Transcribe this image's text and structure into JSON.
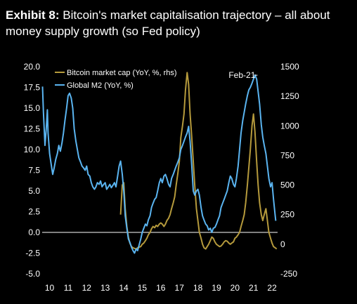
{
  "title": {
    "exhibit": "Exhibit 8:",
    "text": " Bitcoin's market capitalisation trajectory – all about money supply growth (so Fed policy)"
  },
  "colors": {
    "background": "#000000",
    "m2": "#5ab4f0",
    "btc": "#b59a3c",
    "zero_line": "#ffffff",
    "text": "#ffffff"
  },
  "chart_data": {
    "type": "line",
    "legend_position": "top-left",
    "grid": false,
    "y_left": {
      "ylim": [
        -5.0,
        20.0
      ],
      "ticks": [
        "20.0",
        "17.5",
        "15.0",
        "12.5",
        "10.0",
        "7.5",
        "5.0",
        "2.5",
        "0.0",
        "-2.5",
        "-5.0"
      ]
    },
    "y_right": {
      "ylim": [
        -250,
        1500
      ],
      "ticks": [
        "1500",
        "1250",
        "1000",
        "750",
        "500",
        "250",
        "0",
        "-250"
      ]
    },
    "x_ticks": [
      "10",
      "11",
      "12",
      "13",
      "14",
      "15",
      "16",
      "17",
      "18",
      "19",
      "20",
      "21",
      "22"
    ],
    "x_range": [
      9.6,
      22.3
    ],
    "annotations": [
      {
        "text": "Feb-21",
        "x": 21.1,
        "y_right": 1440
      }
    ],
    "series": [
      {
        "name": "Global M2 (YoY, %)",
        "axis": "left",
        "points": [
          [
            9.62,
            17.6
          ],
          [
            9.67,
            14.5
          ],
          [
            9.75,
            10.5
          ],
          [
            9.82,
            12.5
          ],
          [
            9.88,
            14.8
          ],
          [
            9.92,
            12.0
          ],
          [
            10.0,
            9.5
          ],
          [
            10.08,
            8.3
          ],
          [
            10.17,
            7.0
          ],
          [
            10.25,
            7.8
          ],
          [
            10.33,
            8.8
          ],
          [
            10.42,
            9.5
          ],
          [
            10.5,
            10.5
          ],
          [
            10.58,
            9.8
          ],
          [
            10.67,
            10.8
          ],
          [
            10.75,
            12.0
          ],
          [
            10.83,
            13.5
          ],
          [
            10.92,
            15.0
          ],
          [
            11.0,
            16.5
          ],
          [
            11.08,
            16.8
          ],
          [
            11.17,
            16.2
          ],
          [
            11.25,
            15.0
          ],
          [
            11.33,
            12.5
          ],
          [
            11.42,
            11.0
          ],
          [
            11.5,
            10.0
          ],
          [
            11.58,
            9.0
          ],
          [
            11.67,
            8.5
          ],
          [
            11.75,
            8.0
          ],
          [
            11.83,
            7.8
          ],
          [
            11.92,
            7.5
          ],
          [
            12.0,
            8.0
          ],
          [
            12.08,
            7.0
          ],
          [
            12.17,
            6.8
          ],
          [
            12.25,
            6.0
          ],
          [
            12.33,
            5.5
          ],
          [
            12.42,
            5.2
          ],
          [
            12.5,
            5.5
          ],
          [
            12.58,
            6.0
          ],
          [
            12.67,
            5.8
          ],
          [
            12.75,
            6.2
          ],
          [
            12.83,
            5.5
          ],
          [
            12.92,
            5.8
          ],
          [
            13.0,
            6.0
          ],
          [
            13.08,
            5.2
          ],
          [
            13.17,
            5.5
          ],
          [
            13.25,
            5.8
          ],
          [
            13.33,
            5.4
          ],
          [
            13.42,
            5.7
          ],
          [
            13.5,
            6.0
          ],
          [
            13.58,
            5.5
          ],
          [
            13.67,
            6.8
          ],
          [
            13.75,
            8.0
          ],
          [
            13.83,
            8.6
          ],
          [
            13.92,
            7.0
          ],
          [
            14.0,
            5.0
          ],
          [
            14.08,
            2.0
          ],
          [
            14.17,
            0.5
          ],
          [
            14.25,
            -0.8
          ],
          [
            14.33,
            -1.2
          ],
          [
            14.42,
            -1.8
          ],
          [
            14.5,
            -2.2
          ],
          [
            14.58,
            -2.5
          ],
          [
            14.67,
            -2.0
          ],
          [
            14.75,
            -2.2
          ],
          [
            14.83,
            -1.5
          ],
          [
            14.92,
            -0.8
          ],
          [
            15.0,
            0.0
          ],
          [
            15.08,
            0.5
          ],
          [
            15.17,
            1.0
          ],
          [
            15.25,
            0.8
          ],
          [
            15.33,
            1.5
          ],
          [
            15.42,
            2.0
          ],
          [
            15.5,
            3.0
          ],
          [
            15.58,
            3.5
          ],
          [
            15.67,
            4.0
          ],
          [
            15.75,
            4.2
          ],
          [
            15.83,
            5.0
          ],
          [
            15.92,
            6.0
          ],
          [
            16.0,
            6.5
          ],
          [
            16.08,
            6.0
          ],
          [
            16.17,
            6.8
          ],
          [
            16.25,
            7.0
          ],
          [
            16.33,
            6.5
          ],
          [
            16.42,
            5.8
          ],
          [
            16.5,
            5.5
          ],
          [
            16.58,
            6.5
          ],
          [
            16.67,
            7.0
          ],
          [
            16.75,
            7.5
          ],
          [
            16.83,
            8.0
          ],
          [
            16.92,
            8.5
          ],
          [
            17.0,
            9.0
          ],
          [
            17.08,
            10.0
          ],
          [
            17.17,
            10.5
          ],
          [
            17.25,
            11.0
          ],
          [
            17.33,
            11.5
          ],
          [
            17.42,
            12.0
          ],
          [
            17.5,
            12.8
          ],
          [
            17.58,
            11.0
          ],
          [
            17.67,
            8.0
          ],
          [
            17.75,
            5.0
          ],
          [
            17.83,
            4.5
          ],
          [
            17.92,
            5.0
          ],
          [
            18.0,
            5.2
          ],
          [
            18.08,
            4.5
          ],
          [
            18.17,
            3.0
          ],
          [
            18.25,
            2.0
          ],
          [
            18.33,
            1.5
          ],
          [
            18.42,
            1.0
          ],
          [
            18.5,
            0.8
          ],
          [
            18.58,
            0.3
          ],
          [
            18.67,
            0.5
          ],
          [
            18.75,
            0.0
          ],
          [
            18.83,
            0.5
          ],
          [
            18.92,
            0.6
          ],
          [
            19.0,
            1.0
          ],
          [
            19.08,
            1.5
          ],
          [
            19.17,
            2.0
          ],
          [
            19.25,
            3.0
          ],
          [
            19.33,
            3.5
          ],
          [
            19.42,
            4.0
          ],
          [
            19.5,
            4.5
          ],
          [
            19.58,
            5.0
          ],
          [
            19.67,
            6.0
          ],
          [
            19.75,
            6.8
          ],
          [
            19.83,
            6.5
          ],
          [
            19.92,
            5.8
          ],
          [
            20.0,
            5.5
          ],
          [
            20.08,
            6.5
          ],
          [
            20.17,
            8.0
          ],
          [
            20.25,
            10.0
          ],
          [
            20.33,
            12.0
          ],
          [
            20.42,
            13.5
          ],
          [
            20.5,
            14.5
          ],
          [
            20.58,
            15.5
          ],
          [
            20.67,
            16.5
          ],
          [
            20.75,
            17.2
          ],
          [
            20.83,
            17.5
          ],
          [
            20.92,
            18.0
          ],
          [
            21.0,
            18.5
          ],
          [
            21.08,
            19.0
          ],
          [
            21.17,
            18.5
          ],
          [
            21.25,
            17.0
          ],
          [
            21.33,
            15.5
          ],
          [
            21.42,
            13.0
          ],
          [
            21.5,
            11.5
          ],
          [
            21.58,
            10.5
          ],
          [
            21.67,
            9.5
          ],
          [
            21.75,
            8.0
          ],
          [
            21.83,
            6.5
          ],
          [
            21.92,
            5.5
          ],
          [
            22.0,
            6.0
          ],
          [
            22.08,
            4.0
          ],
          [
            22.17,
            2.0
          ],
          [
            22.2,
            1.4
          ]
        ]
      },
      {
        "name": "Bitcoin market cap (YoY, %, rhs)",
        "axis": "right",
        "points": [
          [
            13.83,
            250
          ],
          [
            13.92,
            500
          ],
          [
            14.0,
            520
          ],
          [
            14.08,
            300
          ],
          [
            14.17,
            150
          ],
          [
            14.25,
            60
          ],
          [
            14.33,
            10
          ],
          [
            14.42,
            -20
          ],
          [
            14.5,
            -30
          ],
          [
            14.58,
            -35
          ],
          [
            14.67,
            -40
          ],
          [
            14.75,
            -30
          ],
          [
            14.83,
            -25
          ],
          [
            14.92,
            -20
          ],
          [
            15.0,
            0
          ],
          [
            15.08,
            10
          ],
          [
            15.17,
            30
          ],
          [
            15.25,
            50
          ],
          [
            15.33,
            80
          ],
          [
            15.42,
            100
          ],
          [
            15.5,
            130
          ],
          [
            15.58,
            150
          ],
          [
            15.67,
            140
          ],
          [
            15.75,
            160
          ],
          [
            15.83,
            150
          ],
          [
            15.92,
            170
          ],
          [
            16.0,
            180
          ],
          [
            16.08,
            170
          ],
          [
            16.17,
            150
          ],
          [
            16.25,
            170
          ],
          [
            16.33,
            200
          ],
          [
            16.42,
            220
          ],
          [
            16.5,
            250
          ],
          [
            16.58,
            300
          ],
          [
            16.67,
            350
          ],
          [
            16.75,
            400
          ],
          [
            16.83,
            500
          ],
          [
            16.92,
            600
          ],
          [
            17.0,
            700
          ],
          [
            17.08,
            900
          ],
          [
            17.17,
            1000
          ],
          [
            17.25,
            1100
          ],
          [
            17.33,
            1300
          ],
          [
            17.42,
            1450
          ],
          [
            17.5,
            1350
          ],
          [
            17.58,
            1100
          ],
          [
            17.67,
            900
          ],
          [
            17.75,
            700
          ],
          [
            17.83,
            500
          ],
          [
            17.92,
            300
          ],
          [
            18.0,
            200
          ],
          [
            18.08,
            100
          ],
          [
            18.17,
            50
          ],
          [
            18.25,
            0
          ],
          [
            18.33,
            -30
          ],
          [
            18.42,
            -40
          ],
          [
            18.5,
            -20
          ],
          [
            18.58,
            0
          ],
          [
            18.67,
            30
          ],
          [
            18.75,
            60
          ],
          [
            18.83,
            50
          ],
          [
            18.92,
            20
          ],
          [
            19.0,
            0
          ],
          [
            19.08,
            -10
          ],
          [
            19.17,
            -20
          ],
          [
            19.25,
            -15
          ],
          [
            19.33,
            0
          ],
          [
            19.42,
            20
          ],
          [
            19.5,
            30
          ],
          [
            19.58,
            25
          ],
          [
            19.67,
            10
          ],
          [
            19.75,
            0
          ],
          [
            19.83,
            10
          ],
          [
            19.92,
            20
          ],
          [
            20.0,
            50
          ],
          [
            20.08,
            60
          ],
          [
            20.17,
            80
          ],
          [
            20.25,
            100
          ],
          [
            20.33,
            150
          ],
          [
            20.42,
            200
          ],
          [
            20.5,
            250
          ],
          [
            20.58,
            350
          ],
          [
            20.67,
            500
          ],
          [
            20.75,
            650
          ],
          [
            20.83,
            800
          ],
          [
            20.92,
            1000
          ],
          [
            21.0,
            1100
          ],
          [
            21.08,
            950
          ],
          [
            21.17,
            700
          ],
          [
            21.25,
            500
          ],
          [
            21.33,
            350
          ],
          [
            21.42,
            250
          ],
          [
            21.5,
            200
          ],
          [
            21.58,
            250
          ],
          [
            21.67,
            300
          ],
          [
            21.75,
            200
          ],
          [
            21.83,
            100
          ],
          [
            21.92,
            50
          ],
          [
            22.0,
            10
          ],
          [
            22.08,
            -20
          ],
          [
            22.17,
            -30
          ],
          [
            22.25,
            -40
          ]
        ]
      }
    ]
  }
}
